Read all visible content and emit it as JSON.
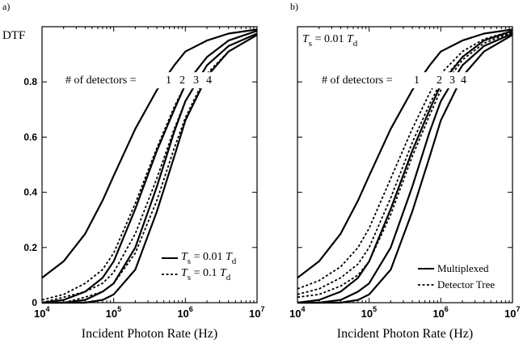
{
  "chart_data": [
    {
      "panel_label": "a)",
      "type": "line",
      "xscale": "log",
      "xlim": [
        10000,
        10000000
      ],
      "ylim": [
        0,
        1
      ],
      "x_ticks": [
        10000,
        100000,
        1000000,
        10000000
      ],
      "x_tick_labels": [
        {
          "base": "10",
          "exp": "4"
        },
        {
          "base": "10",
          "exp": "5"
        },
        {
          "base": "10",
          "exp": "6"
        },
        {
          "base": "10",
          "exp": "7"
        }
      ],
      "y_ticks": [
        "0",
        "0.2",
        "0.4",
        "0.6",
        "0.8",
        ""
      ],
      "ylabel": "DTF",
      "xlabel": "Incident Photon Rate (Hz)",
      "grid": false,
      "detector_annotation": {
        "prefix": "# of detectors = ",
        "numbers": [
          "1",
          "2",
          "3",
          "4"
        ]
      },
      "legend": {
        "position": "bottom-right",
        "entries": [
          {
            "style": "solid",
            "T": "T",
            "sub": "s",
            "text": "= 0.01",
            "T2": "T",
            "sub2": "d"
          },
          {
            "style": "dotted",
            "T": "T",
            "sub": "s",
            "text": "= 0.1",
            "T2": "T",
            "sub2": "d"
          }
        ]
      },
      "series": [
        {
          "detectors": 1,
          "style": "solid",
          "x": [
            10000,
            20000,
            40000,
            70000,
            100000,
            200000,
            400000,
            700000,
            1000000,
            2000000,
            4000000,
            10000000
          ],
          "y": [
            0.09,
            0.15,
            0.25,
            0.37,
            0.46,
            0.63,
            0.77,
            0.86,
            0.91,
            0.95,
            0.975,
            0.99
          ]
        },
        {
          "detectors": 2,
          "style": "solid",
          "x": [
            10000,
            20000,
            40000,
            70000,
            100000,
            200000,
            400000,
            700000,
            1000000,
            2000000,
            4000000,
            10000000
          ],
          "y": [
            0.0,
            0.01,
            0.04,
            0.09,
            0.15,
            0.34,
            0.55,
            0.7,
            0.79,
            0.89,
            0.95,
            0.985
          ]
        },
        {
          "detectors": 3,
          "style": "solid",
          "x": [
            10000,
            20000,
            40000,
            70000,
            100000,
            200000,
            400000,
            700000,
            1000000,
            2000000,
            4000000,
            10000000
          ],
          "y": [
            0.0,
            0.0,
            0.01,
            0.04,
            0.07,
            0.2,
            0.42,
            0.62,
            0.73,
            0.86,
            0.93,
            0.975
          ]
        },
        {
          "detectors": 4,
          "style": "solid",
          "x": [
            10000,
            20000,
            40000,
            70000,
            100000,
            200000,
            400000,
            700000,
            1000000,
            2000000,
            4000000,
            10000000
          ],
          "y": [
            0.0,
            0.0,
            0.0,
            0.01,
            0.03,
            0.12,
            0.33,
            0.53,
            0.66,
            0.82,
            0.91,
            0.97
          ]
        },
        {
          "detectors": 2,
          "style": "dotted",
          "x": [
            10000,
            20000,
            40000,
            70000,
            100000,
            200000,
            400000,
            700000,
            1000000,
            2000000,
            4000000,
            10000000
          ],
          "y": [
            0.01,
            0.03,
            0.07,
            0.12,
            0.18,
            0.36,
            0.56,
            0.71,
            0.79,
            0.89,
            0.95,
            0.985
          ]
        },
        {
          "detectors": 3,
          "style": "dotted",
          "x": [
            10000,
            20000,
            40000,
            70000,
            100000,
            200000,
            400000,
            700000,
            1000000,
            2000000,
            4000000,
            10000000
          ],
          "y": [
            0.0,
            0.02,
            0.04,
            0.07,
            0.11,
            0.25,
            0.45,
            0.63,
            0.73,
            0.86,
            0.93,
            0.975
          ]
        },
        {
          "detectors": 4,
          "style": "dotted",
          "x": [
            10000,
            20000,
            40000,
            70000,
            100000,
            200000,
            400000,
            700000,
            1000000,
            2000000,
            4000000,
            10000000
          ],
          "y": [
            0.0,
            0.0,
            0.02,
            0.04,
            0.07,
            0.18,
            0.37,
            0.56,
            0.67,
            0.83,
            0.91,
            0.97
          ]
        }
      ]
    },
    {
      "panel_label": "b)",
      "type": "line",
      "xscale": "log",
      "xlim": [
        10000,
        10000000
      ],
      "ylim": [
        0,
        1
      ],
      "x_ticks": [
        10000,
        100000,
        1000000,
        10000000
      ],
      "x_tick_labels": [
        {
          "base": "10",
          "exp": "4"
        },
        {
          "base": "10",
          "exp": "5"
        },
        {
          "base": "10",
          "exp": "6"
        },
        {
          "base": "10",
          "exp": "7"
        }
      ],
      "xlabel": "Incident Photon Rate (Hz)",
      "grid": false,
      "corner_annotation": {
        "T": "T",
        "sub": "s",
        "text": "= 0.01",
        "T2": "T",
        "sub2": "d"
      },
      "detector_annotation": {
        "prefix": "# of detectors = ",
        "numbers": [
          "1",
          "2",
          "3",
          "4"
        ]
      },
      "legend": {
        "position": "bottom-right",
        "entries": [
          {
            "style": "solid",
            "label": "Multiplexed"
          },
          {
            "style": "dotted",
            "label": "Detector Tree"
          }
        ]
      },
      "series": [
        {
          "detectors": 1,
          "style": "solid",
          "x": [
            10000,
            20000,
            40000,
            70000,
            100000,
            200000,
            400000,
            700000,
            1000000,
            2000000,
            4000000,
            10000000
          ],
          "y": [
            0.09,
            0.15,
            0.25,
            0.37,
            0.46,
            0.63,
            0.77,
            0.86,
            0.91,
            0.95,
            0.975,
            0.99
          ]
        },
        {
          "detectors": 2,
          "style": "solid",
          "x": [
            10000,
            20000,
            40000,
            70000,
            100000,
            200000,
            400000,
            700000,
            1000000,
            2000000,
            4000000,
            10000000
          ],
          "y": [
            0.0,
            0.01,
            0.04,
            0.09,
            0.15,
            0.34,
            0.55,
            0.7,
            0.79,
            0.89,
            0.95,
            0.985
          ]
        },
        {
          "detectors": 3,
          "style": "solid",
          "x": [
            10000,
            20000,
            40000,
            70000,
            100000,
            200000,
            400000,
            700000,
            1000000,
            2000000,
            4000000,
            10000000
          ],
          "y": [
            0.0,
            0.0,
            0.01,
            0.04,
            0.07,
            0.2,
            0.42,
            0.62,
            0.73,
            0.86,
            0.93,
            0.975
          ]
        },
        {
          "detectors": 4,
          "style": "solid",
          "x": [
            10000,
            20000,
            40000,
            70000,
            100000,
            200000,
            400000,
            700000,
            1000000,
            2000000,
            4000000,
            10000000
          ],
          "y": [
            0.0,
            0.0,
            0.0,
            0.01,
            0.03,
            0.12,
            0.33,
            0.53,
            0.66,
            0.82,
            0.91,
            0.97
          ]
        },
        {
          "detectors": 2,
          "style": "dotted",
          "x": [
            10000,
            20000,
            40000,
            70000,
            100000,
            200000,
            400000,
            700000,
            1000000,
            2000000,
            4000000,
            10000000
          ],
          "y": [
            0.05,
            0.08,
            0.13,
            0.2,
            0.27,
            0.45,
            0.63,
            0.76,
            0.83,
            0.91,
            0.955,
            0.985
          ]
        },
        {
          "detectors": 3,
          "style": "dotted",
          "x": [
            10000,
            20000,
            40000,
            70000,
            100000,
            200000,
            400000,
            700000,
            1000000,
            2000000,
            4000000,
            10000000
          ],
          "y": [
            0.03,
            0.05,
            0.09,
            0.14,
            0.2,
            0.38,
            0.58,
            0.72,
            0.8,
            0.89,
            0.95,
            0.98
          ]
        },
        {
          "detectors": 4,
          "style": "dotted",
          "x": [
            10000,
            20000,
            40000,
            70000,
            100000,
            200000,
            400000,
            700000,
            1000000,
            2000000,
            4000000,
            10000000
          ],
          "y": [
            0.02,
            0.03,
            0.06,
            0.1,
            0.15,
            0.32,
            0.53,
            0.68,
            0.77,
            0.88,
            0.94,
            0.98
          ]
        }
      ]
    }
  ]
}
